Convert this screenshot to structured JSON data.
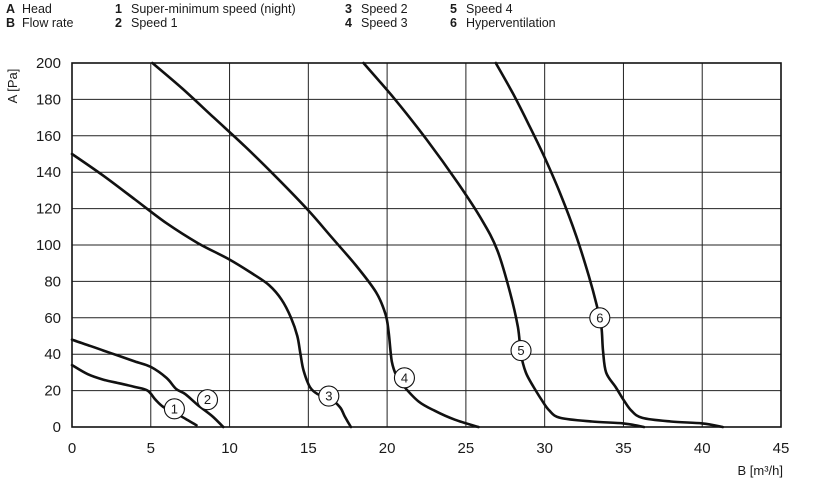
{
  "legend": {
    "entries": [
      {
        "key": "A",
        "label": "Head"
      },
      {
        "key": "B",
        "label": "Flow rate"
      },
      {
        "key": "1",
        "label": "Super-minimum speed (night)"
      },
      {
        "key": "2",
        "label": "Speed 1"
      },
      {
        "key": "3",
        "label": "Speed 2"
      },
      {
        "key": "4",
        "label": "Speed 3"
      },
      {
        "key": "5",
        "label": "Speed 4"
      },
      {
        "key": "6",
        "label": "Hyperventilation"
      }
    ]
  },
  "chart_data": {
    "type": "line",
    "xlabel": "B [m³/h]",
    "ylabel": "A [Pa]",
    "xlim": [
      0,
      45
    ],
    "ylim": [
      0,
      200
    ],
    "x_ticks": [
      "0",
      "5",
      "10",
      "15",
      "20",
      "25",
      "30",
      "35",
      "40",
      "45"
    ],
    "y_ticks": [
      "0",
      "20",
      "40",
      "60",
      "80",
      "100",
      "120",
      "140",
      "160",
      "180",
      "200"
    ],
    "grid": true,
    "series": [
      {
        "name": "1",
        "label_at": [
          6.5,
          10
        ],
        "points": [
          [
            0,
            34
          ],
          [
            1,
            29
          ],
          [
            2,
            26
          ],
          [
            3,
            24
          ],
          [
            4,
            22
          ],
          [
            4.8,
            20
          ],
          [
            5.3,
            15
          ],
          [
            5.8,
            11
          ],
          [
            6.5,
            8
          ],
          [
            7.3,
            4
          ],
          [
            7.9,
            1
          ]
        ]
      },
      {
        "name": "2",
        "label_at": [
          8.6,
          15
        ],
        "points": [
          [
            0,
            48
          ],
          [
            1,
            45
          ],
          [
            2,
            42
          ],
          [
            3,
            39
          ],
          [
            4,
            36
          ],
          [
            5,
            33
          ],
          [
            6,
            27
          ],
          [
            6.6,
            21
          ],
          [
            7.2,
            18
          ],
          [
            8,
            12
          ],
          [
            8.9,
            6
          ],
          [
            9.6,
            0
          ]
        ]
      },
      {
        "name": "3",
        "label_at": [
          16.3,
          17
        ],
        "points": [
          [
            0,
            150
          ],
          [
            2,
            138
          ],
          [
            4,
            125
          ],
          [
            6,
            112
          ],
          [
            8,
            101
          ],
          [
            10,
            92
          ],
          [
            11.5,
            84
          ],
          [
            12.5,
            78
          ],
          [
            13.3,
            70
          ],
          [
            13.9,
            60
          ],
          [
            14.3,
            50
          ],
          [
            14.5,
            40
          ],
          [
            14.7,
            31
          ],
          [
            15.1,
            22
          ],
          [
            15.6,
            18
          ],
          [
            16.3,
            16
          ],
          [
            17,
            11
          ],
          [
            17.3,
            6
          ],
          [
            17.7,
            0
          ]
        ]
      },
      {
        "name": "4",
        "label_at": [
          21.1,
          27
        ],
        "points": [
          [
            5.1,
            200
          ],
          [
            7,
            186
          ],
          [
            9,
            170
          ],
          [
            11,
            154
          ],
          [
            13,
            137
          ],
          [
            15,
            119
          ],
          [
            16.5,
            104
          ],
          [
            18,
            89
          ],
          [
            19.3,
            74
          ],
          [
            19.9,
            62
          ],
          [
            20.1,
            52
          ],
          [
            20.3,
            36
          ],
          [
            20.6,
            28
          ],
          [
            21.1,
            22
          ],
          [
            22,
            14
          ],
          [
            23,
            9
          ],
          [
            24.3,
            4
          ],
          [
            25.8,
            0
          ]
        ]
      },
      {
        "name": "5",
        "label_at": [
          28.5,
          42
        ],
        "points": [
          [
            18.5,
            200
          ],
          [
            20.5,
            180
          ],
          [
            22.5,
            158
          ],
          [
            24.5,
            134
          ],
          [
            26,
            114
          ],
          [
            27,
            97
          ],
          [
            27.8,
            74
          ],
          [
            28.3,
            55
          ],
          [
            28.5,
            40
          ],
          [
            28.8,
            30
          ],
          [
            29.3,
            22
          ],
          [
            29.8,
            15
          ],
          [
            30.3,
            9
          ],
          [
            31,
            5
          ],
          [
            33,
            3
          ],
          [
            35,
            2
          ],
          [
            36.3,
            0
          ]
        ]
      },
      {
        "name": "6",
        "label_at": [
          33.5,
          60
        ],
        "points": [
          [
            26.9,
            200
          ],
          [
            28,
            183
          ],
          [
            29,
            166
          ],
          [
            30,
            148
          ],
          [
            31,
            128
          ],
          [
            32,
            105
          ],
          [
            32.8,
            83
          ],
          [
            33.3,
            67
          ],
          [
            33.6,
            55
          ],
          [
            33.7,
            42
          ],
          [
            33.9,
            30
          ],
          [
            34.5,
            22
          ],
          [
            35,
            15
          ],
          [
            35.5,
            9
          ],
          [
            36.2,
            5
          ],
          [
            38,
            3
          ],
          [
            40,
            2
          ],
          [
            41.3,
            0
          ]
        ]
      }
    ]
  }
}
